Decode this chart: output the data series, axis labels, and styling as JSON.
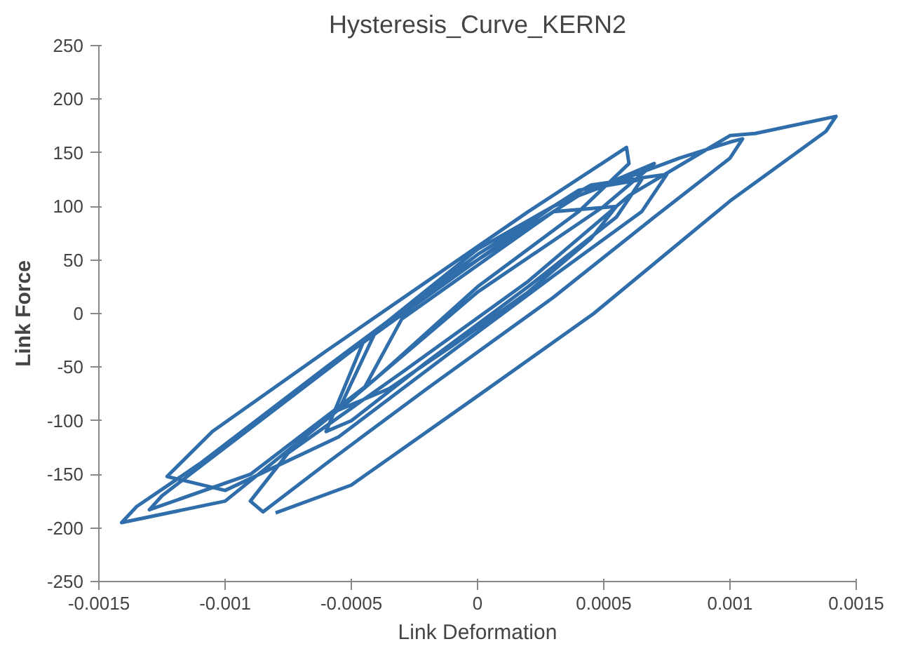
{
  "chart_data": {
    "type": "line",
    "title": "Hysteresis_Curve_KERN2",
    "xlabel": "Link Deformation",
    "ylabel": "Link Force",
    "xlim": [
      -0.0015,
      0.0015
    ],
    "ylim": [
      -250,
      250
    ],
    "xticks": [
      -0.0015,
      -0.001,
      -0.0005,
      0,
      0.0005,
      0.001,
      0.0015
    ],
    "yticks": [
      -250,
      -200,
      -150,
      -100,
      -50,
      0,
      50,
      100,
      150,
      200,
      250
    ],
    "marker": "none",
    "line_style": "solid",
    "x": [
      -0.00045,
      -0.0003,
      0,
      0.0003,
      0.00055,
      0.00045,
      0.0002,
      -0.0001,
      -0.00035,
      -0.00055,
      -0.0004,
      0,
      0.0004,
      0.00065,
      0.00055,
      0.0002,
      -0.0002,
      -0.0005,
      -0.0006,
      -0.00045,
      0,
      0.00045,
      0.00075,
      0.00065,
      0.0003,
      -0.0001,
      -0.00055,
      -0.001,
      -0.00123,
      -0.00105,
      -0.0006,
      -0.0002,
      0.0002,
      0.00059,
      0.0006,
      0.0004,
      0,
      -0.0004,
      -0.0009,
      -0.0013,
      -0.00125,
      -0.001,
      -0.0005,
      0,
      0.0003,
      0.0007,
      0.0005,
      0,
      -0.0005,
      -0.001,
      -0.00141,
      -0.00135,
      -0.0011,
      -0.0006,
      -0.0002,
      0.0004,
      0.0008,
      0.001,
      0.00105,
      0.001,
      0.0007,
      0.0003,
      -0.0002,
      -0.0006,
      -0.00085,
      -0.0009,
      -0.00075,
      -0.0003,
      0.0002,
      0.0006,
      0.001,
      0.0011,
      0.00142,
      0.00138,
      0.001,
      0.00046,
      0,
      -0.0005,
      -0.0008
    ],
    "series": [
      {
        "color": "#2f6eaa",
        "values": [
          -70,
          -5,
          45,
          95,
          100,
          70,
          20,
          -30,
          -70,
          -90,
          -15,
          55,
          115,
          125,
          90,
          25,
          -45,
          -100,
          -110,
          -25,
          60,
          120,
          130,
          95,
          35,
          -35,
          -115,
          -165,
          -152,
          -110,
          -35,
          30,
          95,
          155,
          140,
          95,
          25,
          -60,
          -150,
          -183,
          -170,
          -125,
          -35,
          50,
          100,
          140,
          100,
          20,
          -80,
          -175,
          -195,
          -180,
          -140,
          -50,
          20,
          110,
          145,
          160,
          163,
          145,
          90,
          15,
          -70,
          -140,
          -185,
          -175,
          -130,
          -55,
          30,
          110,
          166,
          168,
          184,
          170,
          105,
          0,
          -77,
          -160,
          -186
        ]
      }
    ]
  }
}
